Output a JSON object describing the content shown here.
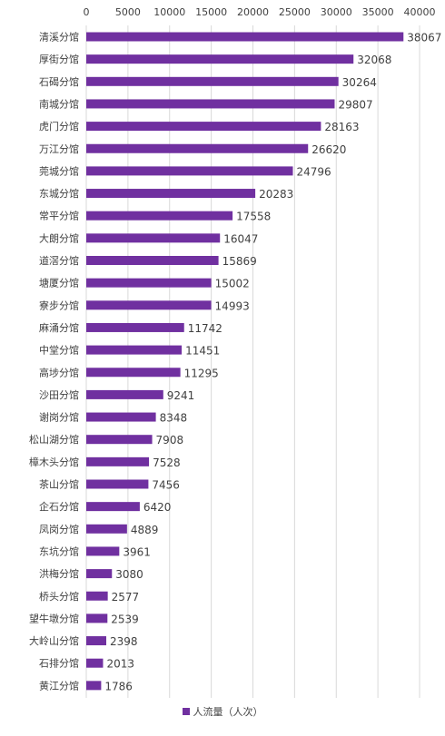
{
  "colors": {
    "bar": "#7030A0",
    "grid": "#d9d9d9",
    "text": "#404040"
  },
  "chart_data": {
    "type": "bar",
    "orientation": "horizontal",
    "xlim": [
      0,
      40000
    ],
    "xticks": [
      "0",
      "5000",
      "10000",
      "15000",
      "20000",
      "25000",
      "30000",
      "35000",
      "40000"
    ],
    "xtick_values": [
      0,
      5000,
      10000,
      15000,
      20000,
      25000,
      30000,
      35000,
      40000
    ],
    "grid": true,
    "legend_position": "bottom",
    "categories": [
      "清溪分馆",
      "厚街分馆",
      "石碣分馆",
      "南城分馆",
      "虎门分馆",
      "万江分馆",
      "莞城分馆",
      "东城分馆",
      "常平分馆",
      "大朗分馆",
      "道滘分馆",
      "塘厦分馆",
      "寮步分馆",
      "麻涌分馆",
      "中堂分馆",
      "高埗分馆",
      "沙田分馆",
      "谢岗分馆",
      "松山湖分馆",
      "樟木头分馆",
      "茶山分馆",
      "企石分馆",
      "凤岗分馆",
      "东坑分馆",
      "洪梅分馆",
      "桥头分馆",
      "望牛墩分馆",
      "大岭山分馆",
      "石排分馆",
      "黄江分馆"
    ],
    "series": [
      {
        "name": "人流量（人次）",
        "values": [
          38067,
          32068,
          30264,
          29807,
          28163,
          26620,
          24796,
          20283,
          17558,
          16047,
          15869,
          15002,
          14993,
          11742,
          11451,
          11295,
          9241,
          8348,
          7908,
          7528,
          7456,
          6420,
          4889,
          3961,
          3080,
          2577,
          2539,
          2398,
          2013,
          1786
        ]
      }
    ]
  }
}
